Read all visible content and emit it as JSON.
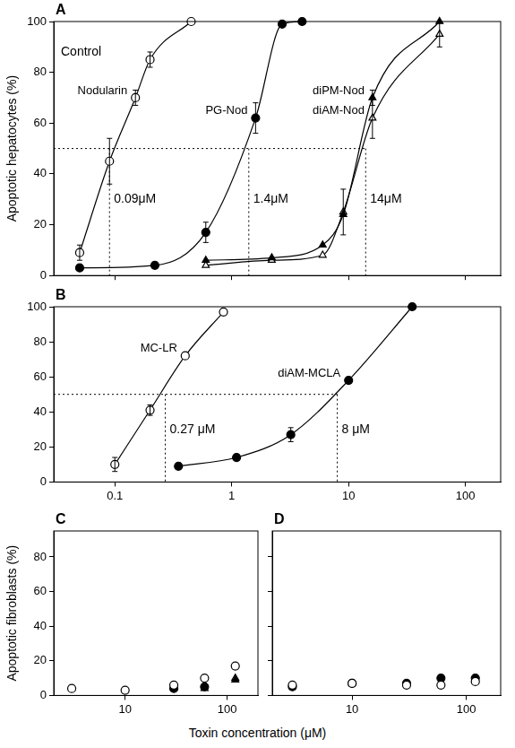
{
  "chart_data": [
    {
      "type": "scatter",
      "title": "A",
      "ylabel": "Apoptotic hepatocytes (%)",
      "log": "x",
      "xlim": [
        0.03,
        200
      ],
      "xticks": [
        0.1,
        1,
        10,
        100
      ],
      "ylim": [
        0,
        100
      ],
      "yticks": [
        0,
        20,
        40,
        60,
        80,
        100
      ],
      "grid": false,
      "tick_labels": "y",
      "threshold": 50,
      "annotations": [
        {
          "text": "Control"
        },
        {
          "text": "0.09μM",
          "x": 0.09
        },
        {
          "text": "1.4μM",
          "x": 1.4
        },
        {
          "text": "14μM",
          "x": 14
        }
      ],
      "series": [
        {
          "name": "Nodularin",
          "color": "#000000",
          "marker": "circle-open",
          "line_style": "solid",
          "x": [
            0.05,
            0.09,
            0.15,
            0.2,
            0.45
          ],
          "values": [
            9,
            45,
            70,
            85,
            100
          ],
          "errors": [
            3,
            9,
            3,
            3,
            null
          ]
        },
        {
          "name": "PG-Nod",
          "color": "#000000",
          "marker": "circle",
          "line_style": "solid",
          "x": [
            0.05,
            0.22,
            0.6,
            1.6,
            2.7,
            4
          ],
          "values": [
            3,
            4,
            17,
            62,
            99,
            100
          ],
          "errors": [
            null,
            null,
            4,
            6,
            null,
            null
          ]
        },
        {
          "name": "diPM-Nod",
          "color": "#000000",
          "marker": "triangle",
          "line_style": "solid",
          "x": [
            0.6,
            2.2,
            6,
            9,
            16,
            60
          ],
          "values": [
            6,
            7,
            12,
            24,
            70,
            100
          ],
          "errors": [
            null,
            null,
            null,
            null,
            3,
            null
          ]
        },
        {
          "name": "diAM-Nod",
          "color": "#000000",
          "marker": "triangle-open",
          "line_style": "solid",
          "x": [
            0.6,
            2.2,
            6,
            9,
            16,
            60
          ],
          "values": [
            4,
            6,
            8,
            25,
            62,
            95
          ],
          "errors": [
            null,
            null,
            null,
            9,
            8,
            5
          ]
        }
      ]
    },
    {
      "type": "scatter",
      "title": "B",
      "log": "x",
      "xlim": [
        0.03,
        200
      ],
      "xticks": [
        0.1,
        1,
        10,
        100
      ],
      "ylim": [
        0,
        100
      ],
      "yticks": [
        0,
        20,
        40,
        60,
        80,
        100
      ],
      "grid": false,
      "threshold": 50,
      "annotations": [
        {
          "text": "0.27 μM",
          "x": 0.27
        },
        {
          "text": "8 μM",
          "x": 8
        }
      ],
      "series": [
        {
          "name": "MC-LR",
          "color": "#000000",
          "marker": "circle-open",
          "line_style": "solid",
          "x": [
            0.1,
            0.2,
            0.4,
            0.85
          ],
          "values": [
            10,
            41,
            72,
            97
          ],
          "errors": [
            4,
            3,
            null,
            null
          ]
        },
        {
          "name": "diAM-MCLA",
          "color": "#000000",
          "marker": "circle",
          "line_style": "solid",
          "x": [
            0.35,
            1.1,
            3.2,
            10,
            35
          ],
          "values": [
            9,
            14,
            27,
            58,
            100
          ],
          "errors": [
            null,
            null,
            4,
            null,
            null
          ]
        }
      ]
    },
    {
      "type": "scatter",
      "title": "C",
      "ylabel": "Apoptotic fibroblasts (%)",
      "xlabel": "Toxin concentration (μM)",
      "log": "x",
      "xlim": [
        2,
        200
      ],
      "xticks": [
        10,
        100
      ],
      "ylim": [
        0,
        95
      ],
      "yticks": [
        0,
        20,
        40,
        60,
        80
      ],
      "grid": false,
      "series": [
        {
          "color": "#000000",
          "marker": "circle-open",
          "x": [
            3,
            10,
            30,
            60,
            120
          ],
          "values": [
            4,
            3,
            6,
            10,
            17
          ]
        },
        {
          "color": "#000000",
          "marker": "circle",
          "x": [
            30,
            60
          ],
          "values": [
            4,
            5
          ]
        },
        {
          "color": "#000000",
          "marker": "triangle",
          "x": [
            60,
            120
          ],
          "values": [
            4,
            9
          ]
        },
        {
          "color": "#000000",
          "marker": "triangle-open",
          "x": [
            120
          ],
          "values": [
            10
          ]
        }
      ]
    },
    {
      "type": "scatter",
      "title": "D",
      "log": "x",
      "xlim": [
        2,
        200
      ],
      "xticks": [
        10,
        100
      ],
      "ylim": [
        0,
        95
      ],
      "yticks": [
        0,
        20,
        40,
        60,
        80
      ],
      "grid": false,
      "tick_labels": "x",
      "series": [
        {
          "color": "#000000",
          "marker": "circle-open",
          "x": [
            3,
            10,
            30,
            60,
            120
          ],
          "values": [
            6,
            7,
            6,
            6,
            8
          ]
        },
        {
          "color": "#000000",
          "marker": "circle",
          "x": [
            3,
            10,
            30,
            60,
            120
          ],
          "values": [
            5,
            7,
            7,
            10,
            10
          ]
        }
      ]
    }
  ]
}
